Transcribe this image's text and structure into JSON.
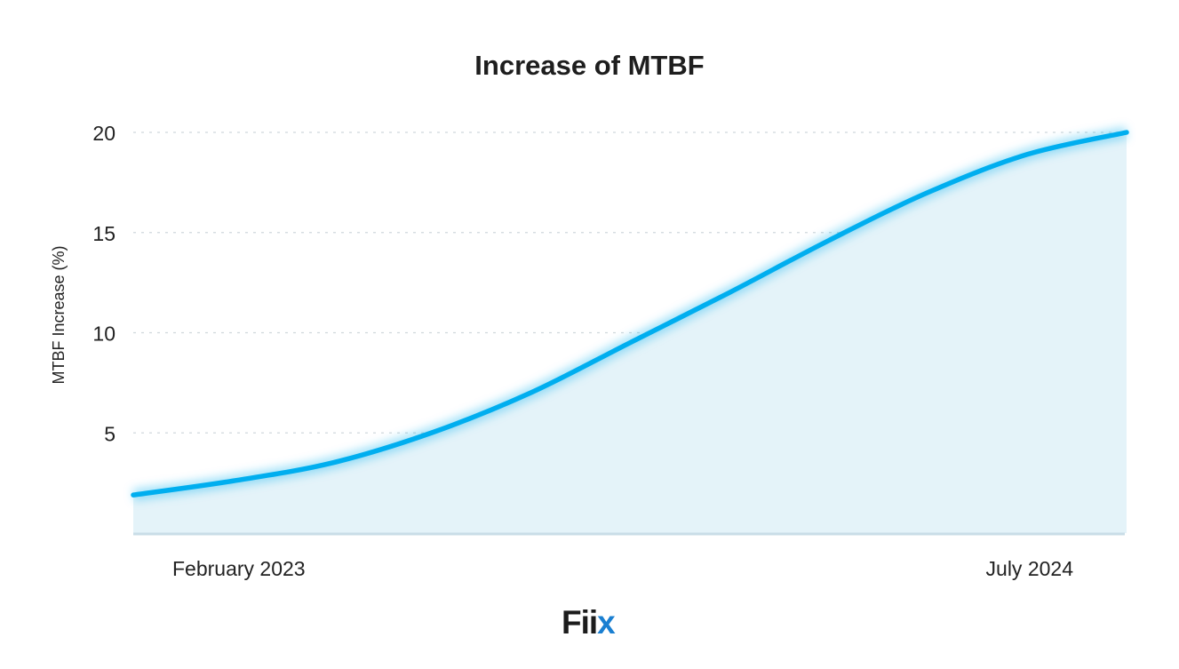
{
  "chart_data": {
    "type": "area",
    "title": "Increase of MTBF",
    "xlabel": "",
    "ylabel": "MTBF Increase (%)",
    "x_tick_labels": [
      "February 2023",
      "July 2024"
    ],
    "y_ticks": [
      5,
      10,
      15,
      20
    ],
    "ylim": [
      0,
      20
    ],
    "grid": true,
    "series": [
      {
        "x": [
          "February 2023",
          "July 2024"
        ],
        "points": [
          {
            "t": 0.0,
            "y": 1.9
          },
          {
            "t": 0.1,
            "y": 2.6
          },
          {
            "t": 0.2,
            "y": 3.5
          },
          {
            "t": 0.3,
            "y": 5.0
          },
          {
            "t": 0.4,
            "y": 7.0
          },
          {
            "t": 0.5,
            "y": 9.5
          },
          {
            "t": 0.6,
            "y": 12.0
          },
          {
            "t": 0.7,
            "y": 14.6
          },
          {
            "t": 0.8,
            "y": 17.0
          },
          {
            "t": 0.9,
            "y": 18.9
          },
          {
            "t": 1.0,
            "y": 20.0
          }
        ]
      }
    ],
    "colors": {
      "line": "#00aeef",
      "fill": "#e4f3f9",
      "baseline": "#c9dde7",
      "grid": "#cfd8dc"
    }
  },
  "logo": {
    "text_a": "Fii",
    "text_b": "x",
    "color_a": "#1c1c1c",
    "color_b": "#1a7fd1"
  }
}
